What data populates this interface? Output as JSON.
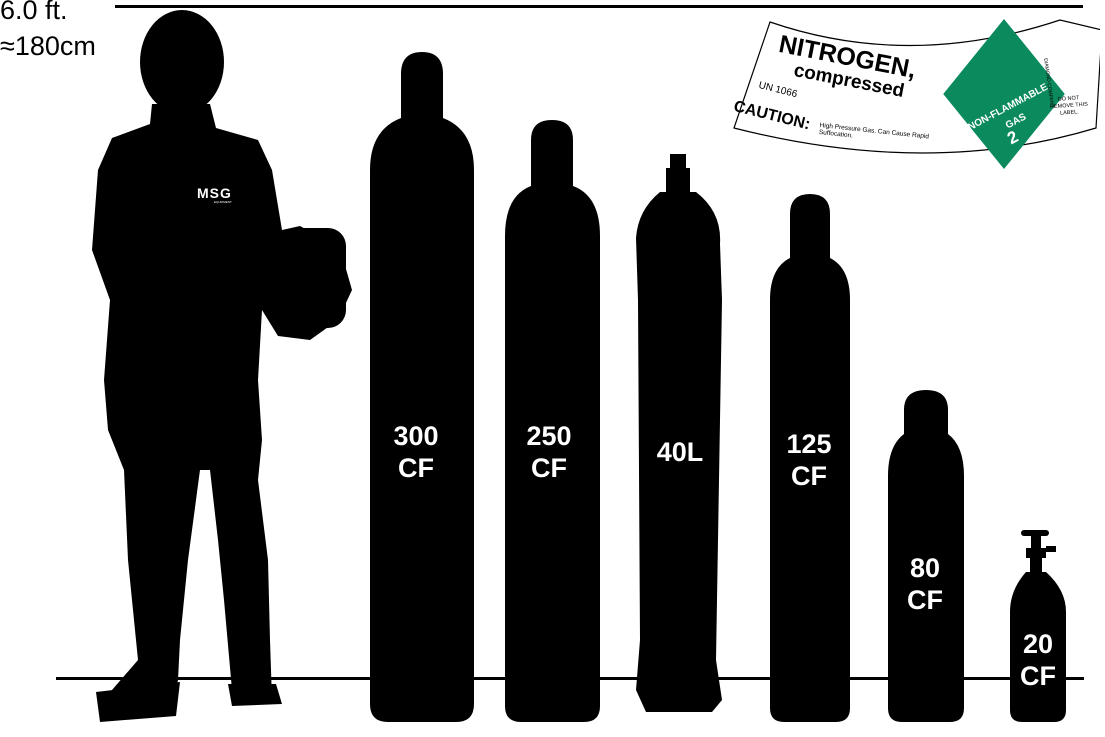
{
  "scale": {
    "feet": "6.0 ft.",
    "cm": "≈180cm"
  },
  "person": {
    "logo": "MSG",
    "logo_sub": "EQUIPMENT"
  },
  "cylinders": [
    {
      "line1": "300",
      "line2": "CF"
    },
    {
      "line1": "250",
      "line2": "CF"
    },
    {
      "line1": "40L",
      "line2": ""
    },
    {
      "line1": "125",
      "line2": "CF"
    },
    {
      "line1": "80",
      "line2": "CF"
    },
    {
      "line1": "20",
      "line2": "CF"
    }
  ],
  "label": {
    "name": "NITROGEN,",
    "state": "compressed",
    "un": "UN 1066",
    "caution": "CAUTION:",
    "caution_detail": "High Pressure Gas. Can Cause Rapid Suffocation.",
    "hazard_line1": "NON-FLAMMABLE",
    "hazard_line2": "GAS",
    "hazard_class": "2",
    "do_not_remove": "DO NOT REMOVE THIS LABEL.",
    "side_note": "DIAMOND COMPANY",
    "diamond_color": "#0b8a5e"
  }
}
